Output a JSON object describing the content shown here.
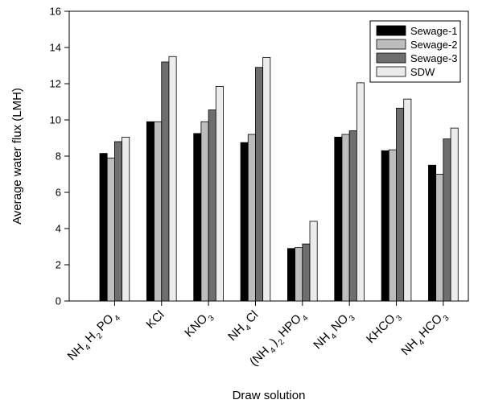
{
  "chart_data": {
    "type": "bar",
    "title": "",
    "xlabel": "Draw solution",
    "ylabel": "Average water flux (LMH)",
    "ylim": [
      0,
      16
    ],
    "yticks": [
      0,
      2,
      4,
      6,
      8,
      10,
      12,
      14,
      16
    ],
    "grid": false,
    "legend_position": "top-right",
    "categories": [
      {
        "parts": [
          {
            "t": "NH"
          },
          {
            "t": "4",
            "sub": true
          },
          {
            "t": "H"
          },
          {
            "t": "2",
            "sub": true
          },
          {
            "t": "PO"
          },
          {
            "t": "4",
            "sub": true
          }
        ]
      },
      {
        "parts": [
          {
            "t": "KCl"
          }
        ]
      },
      {
        "parts": [
          {
            "t": "KNO"
          },
          {
            "t": "3",
            "sub": true
          }
        ]
      },
      {
        "parts": [
          {
            "t": "NH"
          },
          {
            "t": "4",
            "sub": true
          },
          {
            "t": "Cl"
          }
        ]
      },
      {
        "parts": [
          {
            "t": "(NH"
          },
          {
            "t": "4",
            "sub": true
          },
          {
            "t": ")"
          },
          {
            "t": "2",
            "sub": true
          },
          {
            "t": "HPO"
          },
          {
            "t": "4",
            "sub": true
          }
        ]
      },
      {
        "parts": [
          {
            "t": "NH"
          },
          {
            "t": "4",
            "sub": true
          },
          {
            "t": "NO"
          },
          {
            "t": "3",
            "sub": true
          }
        ]
      },
      {
        "parts": [
          {
            "t": "KHCO"
          },
          {
            "t": "3",
            "sub": true
          }
        ]
      },
      {
        "parts": [
          {
            "t": "NH"
          },
          {
            "t": "4",
            "sub": true
          },
          {
            "t": "HCO"
          },
          {
            "t": "3",
            "sub": true
          }
        ]
      }
    ],
    "series": [
      {
        "name": "Sewage-1",
        "color": "#000000",
        "values": [
          8.15,
          9.9,
          9.25,
          8.75,
          2.9,
          9.05,
          8.3,
          7.5
        ]
      },
      {
        "name": "Sewage-2",
        "color": "#bdbdbd",
        "values": [
          7.9,
          9.9,
          9.9,
          9.2,
          2.95,
          9.2,
          8.35,
          7.0
        ]
      },
      {
        "name": "Sewage-3",
        "color": "#6e6e6e",
        "values": [
          8.8,
          13.2,
          10.55,
          12.9,
          3.15,
          9.4,
          10.65,
          8.95
        ]
      },
      {
        "name": "SDW",
        "color": "#ececec",
        "values": [
          9.05,
          13.5,
          11.85,
          13.45,
          4.4,
          12.05,
          11.15,
          9.55
        ]
      }
    ]
  }
}
